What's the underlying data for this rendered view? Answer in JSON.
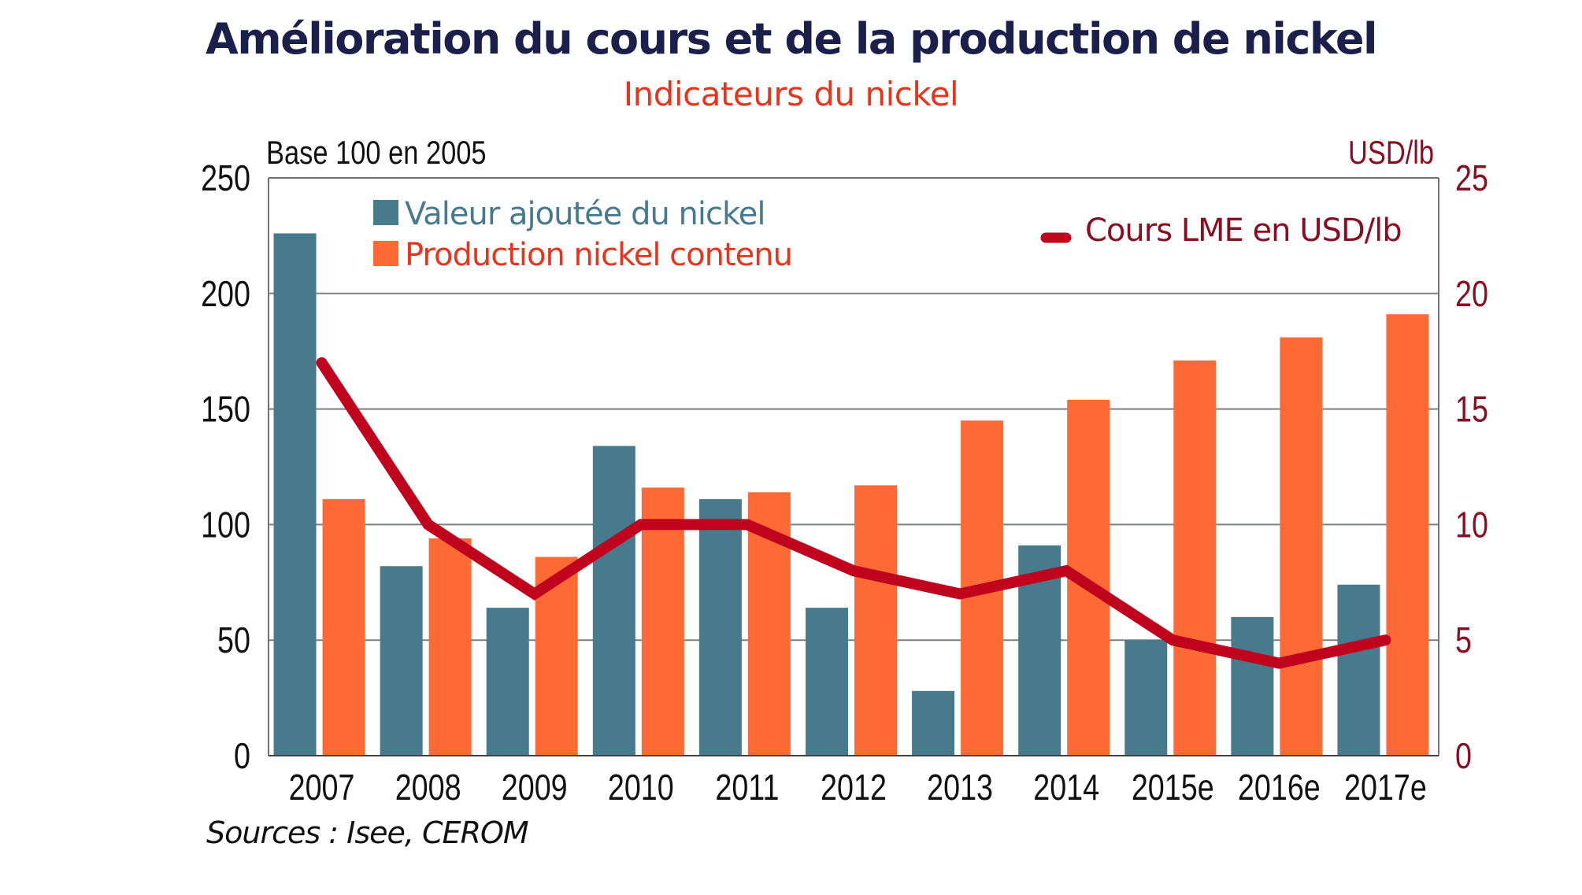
{
  "title": "Amélioration du cours et de la production de nickel",
  "subtitle": "Indicateurs du nickel",
  "source": "Sources : Isee, CEROM",
  "colors": {
    "valeur_ajoutee": "#477a8c",
    "production": "#fd6a36",
    "cours": "#c0041e",
    "title": "#1b1f4b",
    "subtitle": "#e8341c",
    "right_axis": "#8a0e22",
    "grid": "#7b7f82"
  },
  "chart_data": {
    "type": "bar",
    "title": "Amélioration du cours et de la production de nickel",
    "subtitle": "Indicateurs du nickel",
    "xlabel": "",
    "ylabel": "Base 100 en 2005",
    "y2label": "USD/lb",
    "ylim": [
      0,
      250
    ],
    "y2lim": [
      0,
      25
    ],
    "yticks": [
      "0",
      "50",
      "100",
      "150",
      "200",
      "250"
    ],
    "y2ticks": [
      "0",
      "5",
      "10",
      "15",
      "20",
      "25"
    ],
    "grid": true,
    "categories": [
      "2007",
      "2008",
      "2009",
      "2010",
      "2011",
      "2012",
      "2013",
      "2014",
      "2015e",
      "2016e",
      "2017e"
    ],
    "series": [
      {
        "name": "Valeur ajoutée du nickel",
        "type": "bar",
        "axis": "left",
        "values": [
          226,
          82,
          64,
          134,
          111,
          64,
          28,
          91,
          50,
          60,
          74
        ]
      },
      {
        "name": "Production nickel contenu",
        "type": "bar",
        "axis": "left",
        "values": [
          111,
          94,
          86,
          116,
          114,
          117,
          145,
          154,
          171,
          181,
          191
        ]
      },
      {
        "name": "Cours LME en USD/lb",
        "type": "line",
        "axis": "right",
        "values": [
          17,
          10,
          7,
          10,
          10,
          8,
          7,
          8,
          5,
          4,
          5
        ]
      }
    ],
    "legend": [
      {
        "label": "Valeur ajoutée du nickel",
        "position": "top-left"
      },
      {
        "label": "Production nickel contenu",
        "position": "top-left"
      },
      {
        "label": "Cours LME en USD/lb",
        "position": "top-right"
      }
    ],
    "source": "Sources : Isee, CEROM"
  }
}
